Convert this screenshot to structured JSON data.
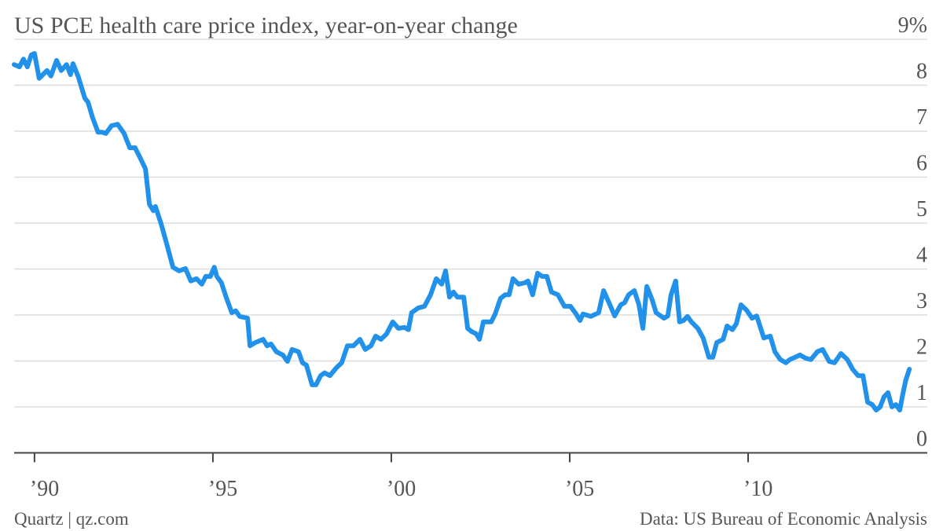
{
  "chart_data": {
    "type": "line",
    "title": "US PCE health care price index, year-on-year change",
    "credit": "Quartz | qz.com",
    "source": "Data: US Bureau of Economic Analysis",
    "x": [
      1989.43,
      1989.58,
      1989.69,
      1989.8,
      1989.91,
      1990.0,
      1990.13,
      1990.35,
      1990.46,
      1990.62,
      1990.75,
      1990.9,
      1991.01,
      1991.08,
      1991.23,
      1991.41,
      1991.5,
      1991.63,
      1991.78,
      1991.89,
      1992.0,
      1992.16,
      1992.33,
      1992.51,
      1992.67,
      1992.82,
      1992.95,
      1993.11,
      1993.22,
      1993.33,
      1993.39,
      1993.55,
      1993.7,
      1993.88,
      1994.05,
      1994.23,
      1994.38,
      1994.54,
      1994.69,
      1994.8,
      1994.93,
      1995.04,
      1995.11,
      1995.24,
      1995.37,
      1995.53,
      1995.64,
      1995.75,
      1995.97,
      1996.04,
      1996.19,
      1996.41,
      1996.52,
      1996.63,
      1996.78,
      1996.96,
      1997.09,
      1997.22,
      1997.4,
      1997.51,
      1997.62,
      1997.78,
      1997.89,
      1998.02,
      1998.13,
      1998.28,
      1998.46,
      1998.61,
      1998.77,
      1998.94,
      1999.12,
      1999.27,
      1999.43,
      1999.56,
      1999.71,
      1999.87,
      2000.04,
      2000.2,
      2000.37,
      2000.48,
      2000.57,
      2000.75,
      2000.93,
      2001.1,
      2001.26,
      2001.41,
      2001.52,
      2001.63,
      2001.74,
      2001.85,
      2002.03,
      2002.14,
      2002.25,
      2002.38,
      2002.47,
      2002.58,
      2002.8,
      2002.91,
      2003.06,
      2003.19,
      2003.3,
      2003.41,
      2003.57,
      2003.74,
      2003.83,
      2003.96,
      2004.1,
      2004.23,
      2004.36,
      2004.49,
      2004.67,
      2004.85,
      2005.02,
      2005.18,
      2005.29,
      2005.37,
      2005.59,
      2005.81,
      2005.95,
      2006.1,
      2006.26,
      2006.43,
      2006.54,
      2006.65,
      2006.81,
      2006.94,
      2007.05,
      2007.16,
      2007.31,
      2007.42,
      2007.64,
      2007.75,
      2007.84,
      2007.97,
      2008.08,
      2008.19,
      2008.3,
      2008.41,
      2008.59,
      2008.74,
      2008.9,
      2009.01,
      2009.12,
      2009.3,
      2009.41,
      2009.56,
      2009.67,
      2009.8,
      2009.96,
      2010.11,
      2010.24,
      2010.44,
      2010.62,
      2010.75,
      2010.9,
      2011.06,
      2011.17,
      2011.32,
      2011.45,
      2011.61,
      2011.76,
      2011.94,
      2012.09,
      2012.27,
      2012.42,
      2012.6,
      2012.78,
      2012.93,
      2013.08,
      2013.22,
      2013.35,
      2013.48,
      2013.59,
      2013.7,
      2013.81,
      2013.92,
      2014.03,
      2014.14,
      2014.25,
      2014.32,
      2014.41,
      2014.52
    ],
    "series": [
      {
        "color": "#2191ea",
        "values": [
          8.45,
          8.4,
          8.57,
          8.4,
          8.66,
          8.69,
          8.15,
          8.32,
          8.2,
          8.54,
          8.32,
          8.45,
          8.23,
          8.47,
          8.18,
          7.72,
          7.63,
          7.29,
          6.98,
          6.98,
          6.95,
          7.12,
          7.15,
          6.95,
          6.64,
          6.64,
          6.44,
          6.18,
          5.41,
          5.27,
          5.36,
          4.98,
          4.56,
          4.04,
          3.96,
          4.01,
          3.74,
          3.79,
          3.67,
          3.84,
          3.84,
          4.04,
          3.84,
          3.7,
          3.39,
          3.05,
          3.09,
          2.97,
          2.93,
          2.33,
          2.4,
          2.47,
          2.33,
          2.37,
          2.2,
          2.13,
          1.99,
          2.25,
          2.2,
          1.96,
          1.91,
          1.48,
          1.48,
          1.68,
          1.74,
          1.68,
          1.85,
          1.96,
          2.33,
          2.33,
          2.47,
          2.25,
          2.33,
          2.54,
          2.47,
          2.59,
          2.85,
          2.71,
          2.73,
          2.68,
          3.05,
          3.15,
          3.19,
          3.44,
          3.79,
          3.67,
          3.96,
          3.39,
          3.5,
          3.39,
          3.39,
          2.71,
          2.64,
          2.59,
          2.47,
          2.85,
          2.85,
          3.02,
          3.36,
          3.44,
          3.44,
          3.79,
          3.67,
          3.7,
          3.74,
          3.44,
          3.91,
          3.84,
          3.84,
          3.5,
          3.44,
          3.19,
          3.19,
          3.02,
          2.88,
          3.02,
          2.97,
          3.05,
          3.53,
          3.27,
          2.98,
          3.22,
          3.27,
          3.44,
          3.53,
          3.22,
          2.71,
          3.62,
          3.33,
          3.05,
          2.93,
          2.98,
          3.44,
          3.74,
          2.85,
          2.88,
          2.97,
          2.85,
          2.71,
          2.5,
          2.08,
          2.08,
          2.4,
          2.47,
          2.76,
          2.68,
          2.81,
          3.22,
          3.1,
          2.93,
          2.98,
          2.5,
          2.54,
          2.2,
          2.03,
          1.96,
          2.03,
          2.08,
          2.13,
          2.06,
          2.03,
          2.2,
          2.25,
          1.99,
          1.96,
          2.16,
          2.03,
          1.82,
          1.68,
          1.68,
          1.1,
          1.05,
          0.93,
          1.0,
          1.22,
          1.31,
          1.0,
          1.05,
          0.93,
          1.22,
          1.56,
          1.82
        ]
      }
    ],
    "xlim": [
      1989.43,
      2014.9
    ],
    "xticks": [
      {
        "value": 1990,
        "label": "’90"
      },
      {
        "value": 1995,
        "label": "’95"
      },
      {
        "value": 2000,
        "label": "’00"
      },
      {
        "value": 2005,
        "label": "’05"
      },
      {
        "value": 2010,
        "label": "’10"
      }
    ],
    "ylim": [
      0,
      9
    ],
    "yticks": [
      0,
      1,
      2,
      3,
      4,
      5,
      6,
      7,
      8,
      {
        "value": 9,
        "label": "9%"
      }
    ],
    "grid": true
  }
}
